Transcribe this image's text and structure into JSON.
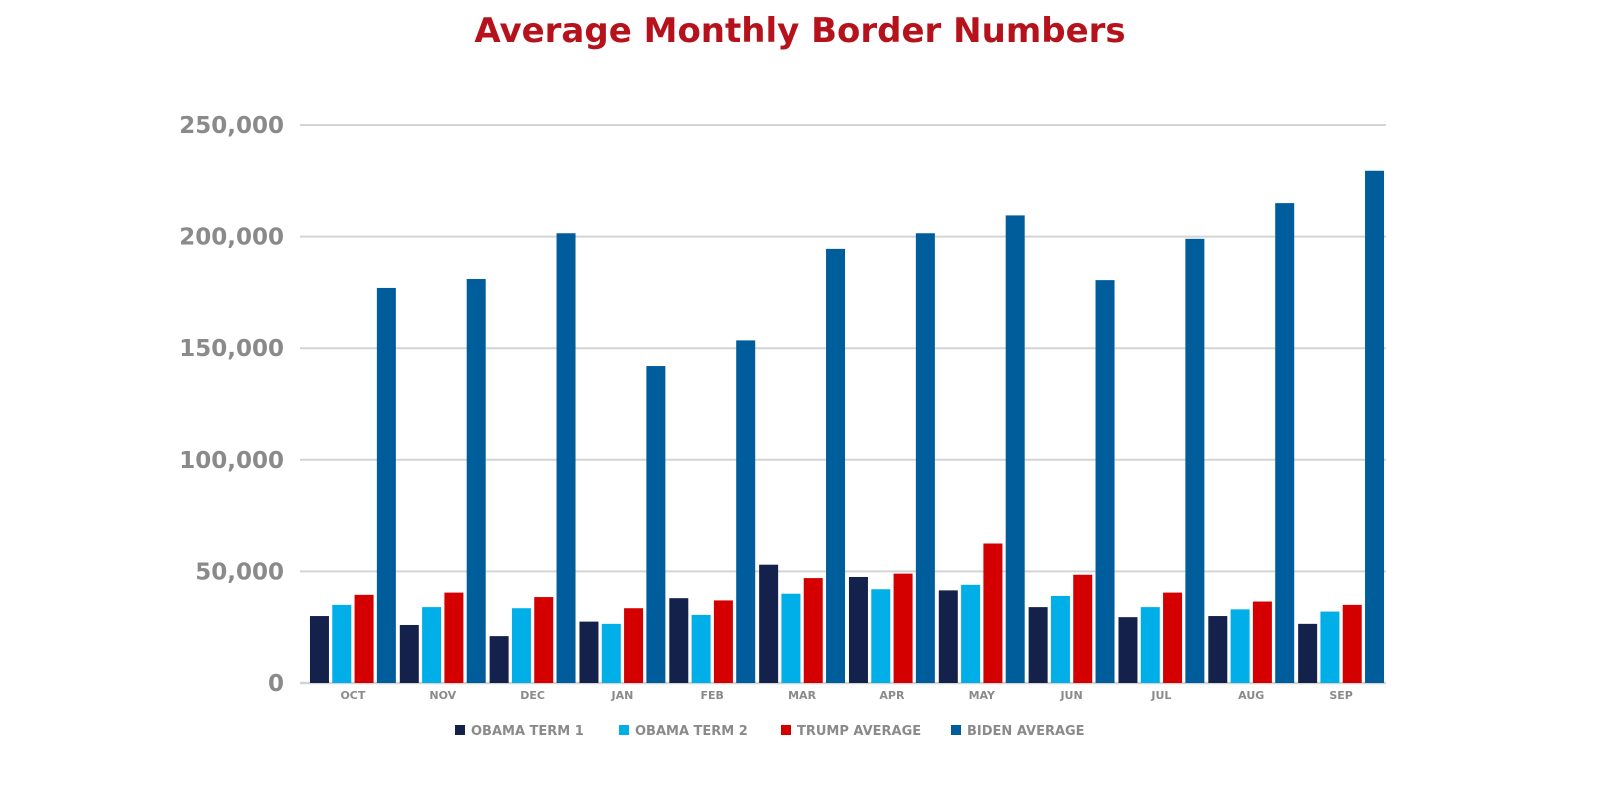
{
  "chart_data": {
    "type": "bar",
    "title": "Average Monthly Border Numbers",
    "xlabel": "",
    "ylabel": "",
    "ylim": [
      0,
      250000
    ],
    "yticks": [
      0,
      50000,
      100000,
      150000,
      200000,
      250000
    ],
    "ytick_labels": [
      "0",
      "50,000",
      "100,000",
      "150,000",
      "200,000",
      "250,000"
    ],
    "grid": true,
    "legend_position": "bottom",
    "categories": [
      "OCT",
      "NOV",
      "DEC",
      "JAN",
      "FEB",
      "MAR",
      "APR",
      "MAY",
      "JUN",
      "JUL",
      "AUG",
      "SEP"
    ],
    "series": [
      {
        "name": "OBAMA TERM 1",
        "color": "#14214a",
        "values": [
          30000,
          26000,
          21000,
          27500,
          38000,
          53000,
          47500,
          41500,
          34000,
          29500,
          30000,
          26500
        ]
      },
      {
        "name": "OBAMA TERM 2",
        "color": "#00aee8",
        "values": [
          35000,
          34000,
          33500,
          26500,
          30500,
          40000,
          42000,
          44000,
          39000,
          34000,
          33000,
          32000
        ]
      },
      {
        "name": "TRUMP AVERAGE",
        "color": "#d40000",
        "values": [
          39500,
          40500,
          38500,
          33500,
          37000,
          47000,
          49000,
          62500,
          48500,
          40500,
          36500,
          35000
        ]
      },
      {
        "name": "BIDEN AVERAGE",
        "color": "#005d9c",
        "values": [
          177000,
          181000,
          201500,
          142000,
          153500,
          194500,
          201500,
          209500,
          180500,
          199000,
          215000,
          229500
        ]
      }
    ],
    "colors": {
      "title": "#b5121b",
      "tick": "#8a8a8a",
      "grid": "#d4d4d4"
    }
  }
}
